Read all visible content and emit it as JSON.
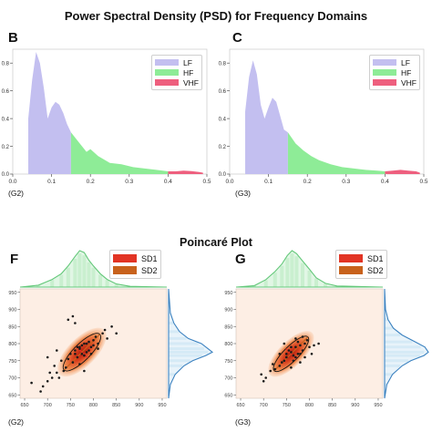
{
  "figure": {
    "title": "Power Spectral Density (PSD) for Frequency Domains",
    "poincare_title": "Poincaré Plot"
  },
  "colors": {
    "lf": "#c3bff0",
    "hf": "#8eec97",
    "vhf": "#ee5f7e",
    "sd1": "#e23424",
    "sd2": "#c8621c",
    "kde_top": "#64c87a",
    "hist_top": "#c9efcf",
    "kde_right": "#3c82c0",
    "hist_right": "#d6eaf5",
    "poincare_bg": "#fdeee4",
    "points": "#1a1a1a"
  },
  "chart_data": [
    {
      "panel": "B",
      "group": "(G2)",
      "type": "area",
      "title": "",
      "xlabel": "",
      "ylabel": "",
      "xlim": [
        0,
        0.5
      ],
      "ylim": [
        0,
        0.9
      ],
      "x_ticks": [
        "0.0",
        "0.1",
        "0.2",
        "0.3",
        "0.4",
        "0.5"
      ],
      "y_ticks": [
        "0.0",
        "0.2",
        "0.4",
        "0.6",
        "0.8"
      ],
      "legend": {
        "placement": "top-right",
        "entries": [
          "LF",
          "HF",
          "VHF"
        ]
      },
      "series": [
        {
          "name": "LF",
          "band": [
            0.04,
            0.15
          ],
          "x": [
            0.04,
            0.05,
            0.06,
            0.07,
            0.08,
            0.09,
            0.1,
            0.11,
            0.12,
            0.13,
            0.14,
            0.15
          ],
          "y": [
            0.4,
            0.68,
            0.88,
            0.8,
            0.62,
            0.4,
            0.48,
            0.52,
            0.5,
            0.44,
            0.36,
            0.3
          ]
        },
        {
          "name": "HF",
          "band": [
            0.15,
            0.4
          ],
          "x": [
            0.15,
            0.17,
            0.19,
            0.2,
            0.22,
            0.25,
            0.28,
            0.31,
            0.34,
            0.37,
            0.4
          ],
          "y": [
            0.3,
            0.23,
            0.16,
            0.18,
            0.13,
            0.08,
            0.07,
            0.05,
            0.04,
            0.03,
            0.02
          ]
        },
        {
          "name": "VHF",
          "band": [
            0.4,
            0.5
          ],
          "x": [
            0.4,
            0.42,
            0.44,
            0.46,
            0.48,
            0.49
          ],
          "y": [
            0.02,
            0.02,
            0.025,
            0.022,
            0.015,
            0.01
          ]
        }
      ]
    },
    {
      "panel": "C",
      "group": "(G3)",
      "type": "area",
      "title": "",
      "xlabel": "",
      "ylabel": "",
      "xlim": [
        0,
        0.5
      ],
      "ylim": [
        0,
        0.9
      ],
      "x_ticks": [
        "0.0",
        "0.1",
        "0.2",
        "0.3",
        "0.4",
        "0.5"
      ],
      "y_ticks": [
        "0.0",
        "0.2",
        "0.4",
        "0.6",
        "0.8"
      ],
      "legend": {
        "placement": "top-right",
        "entries": [
          "LF",
          "HF",
          "VHF"
        ]
      },
      "series": [
        {
          "name": "LF",
          "band": [
            0.04,
            0.15
          ],
          "x": [
            0.04,
            0.05,
            0.06,
            0.07,
            0.08,
            0.09,
            0.1,
            0.11,
            0.12,
            0.13,
            0.14,
            0.15
          ],
          "y": [
            0.45,
            0.7,
            0.82,
            0.72,
            0.5,
            0.4,
            0.48,
            0.55,
            0.52,
            0.42,
            0.32,
            0.3
          ]
        },
        {
          "name": "HF",
          "band": [
            0.15,
            0.4
          ],
          "x": [
            0.15,
            0.17,
            0.19,
            0.21,
            0.23,
            0.26,
            0.29,
            0.32,
            0.35,
            0.38,
            0.4
          ],
          "y": [
            0.3,
            0.22,
            0.17,
            0.13,
            0.1,
            0.07,
            0.05,
            0.04,
            0.03,
            0.025,
            0.02
          ]
        },
        {
          "name": "VHF",
          "band": [
            0.4,
            0.5
          ],
          "x": [
            0.4,
            0.42,
            0.44,
            0.46,
            0.48,
            0.49
          ],
          "y": [
            0.02,
            0.025,
            0.03,
            0.025,
            0.02,
            0.01
          ]
        }
      ]
    },
    {
      "panel": "F",
      "group": "(G2)",
      "type": "scatter",
      "title": "",
      "xlabel": "",
      "ylabel": "",
      "xlim": [
        640,
        960
      ],
      "ylim": [
        640,
        960
      ],
      "x_ticks": [
        "650",
        "700",
        "750",
        "800",
        "850",
        "900",
        "950"
      ],
      "y_ticks": [
        "650",
        "700",
        "750",
        "800",
        "850",
        "900",
        "950"
      ],
      "legend": {
        "placement": "top-right",
        "entries": [
          "SD1",
          "SD2"
        ]
      },
      "ellipse": {
        "center": [
          775,
          775
        ],
        "sd1": 18,
        "sd2": 55,
        "angle_deg": 45
      },
      "points": [
        [
          770,
          790
        ],
        [
          760,
          770
        ],
        [
          780,
          800
        ],
        [
          785,
          775
        ],
        [
          765,
          760
        ],
        [
          790,
          805
        ],
        [
          755,
          745
        ],
        [
          800,
          810
        ],
        [
          775,
          770
        ],
        [
          770,
          785
        ],
        [
          795,
          790
        ],
        [
          760,
          780
        ],
        [
          785,
          800
        ],
        [
          805,
          820
        ],
        [
          745,
          755
        ],
        [
          780,
          765
        ],
        [
          765,
          790
        ],
        [
          790,
          780
        ],
        [
          810,
          800
        ],
        [
          750,
          770
        ],
        [
          775,
          795
        ],
        [
          800,
          795
        ],
        [
          740,
          730
        ],
        [
          820,
          830
        ],
        [
          735,
          720
        ],
        [
          730,
          750
        ],
        [
          720,
          715
        ],
        [
          710,
          700
        ],
        [
          700,
          690
        ],
        [
          690,
          675
        ],
        [
          685,
          660
        ],
        [
          705,
          715
        ],
        [
          725,
          700
        ],
        [
          715,
          735
        ],
        [
          830,
          815
        ],
        [
          825,
          840
        ],
        [
          840,
          850
        ],
        [
          760,
          860
        ],
        [
          755,
          880
        ],
        [
          745,
          870
        ],
        [
          780,
          720
        ],
        [
          700,
          760
        ],
        [
          720,
          780
        ],
        [
          665,
          685
        ],
        [
          850,
          830
        ],
        [
          770,
          740
        ],
        [
          795,
          770
        ],
        [
          810,
          785
        ]
      ]
    },
    {
      "panel": "G",
      "group": "(G3)",
      "type": "scatter",
      "title": "",
      "xlabel": "",
      "ylabel": "",
      "xlim": [
        640,
        960
      ],
      "ylim": [
        640,
        960
      ],
      "x_ticks": [
        "650",
        "700",
        "750",
        "800",
        "850",
        "900",
        "950"
      ],
      "y_ticks": [
        "650",
        "700",
        "750",
        "800",
        "850",
        "900",
        "950"
      ],
      "legend": {
        "placement": "top-right",
        "entries": [
          "SD1",
          "SD2"
        ]
      },
      "ellipse": {
        "center": [
          760,
          770
        ],
        "sd1": 16,
        "sd2": 52,
        "angle_deg": 45
      },
      "points": [
        [
          760,
          775
        ],
        [
          750,
          760
        ],
        [
          770,
          790
        ],
        [
          775,
          770
        ],
        [
          745,
          750
        ],
        [
          780,
          795
        ],
        [
          765,
          765
        ],
        [
          790,
          800
        ],
        [
          755,
          780
        ],
        [
          770,
          760
        ],
        [
          785,
          780
        ],
        [
          740,
          745
        ],
        [
          795,
          810
        ],
        [
          760,
          790
        ],
        [
          750,
          770
        ],
        [
          780,
          770
        ],
        [
          800,
          790
        ],
        [
          735,
          735
        ],
        [
          775,
          805
        ],
        [
          765,
          750
        ],
        [
          725,
          725
        ],
        [
          715,
          720
        ],
        [
          705,
          700
        ],
        [
          720,
          740
        ],
        [
          810,
          795
        ],
        [
          805,
          770
        ],
        [
          790,
          760
        ],
        [
          760,
          730
        ],
        [
          780,
          745
        ],
        [
          700,
          690
        ],
        [
          695,
          710
        ],
        [
          820,
          800
        ],
        [
          745,
          800
        ],
        [
          735,
          770
        ],
        [
          770,
          815
        ],
        [
          785,
          820
        ]
      ]
    }
  ],
  "poincare_marginals": [
    {
      "panel": "F",
      "top_kde": [
        [
          640,
          0.0
        ],
        [
          680,
          0.05
        ],
        [
          710,
          0.2
        ],
        [
          730,
          0.35
        ],
        [
          745,
          0.55
        ],
        [
          760,
          0.8
        ],
        [
          770,
          0.95
        ],
        [
          780,
          0.9
        ],
        [
          790,
          0.7
        ],
        [
          800,
          0.55
        ],
        [
          815,
          0.35
        ],
        [
          830,
          0.2
        ],
        [
          850,
          0.08
        ],
        [
          880,
          0.02
        ],
        [
          960,
          0.0
        ]
      ],
      "right_kde": [
        [
          640,
          0.0
        ],
        [
          680,
          0.04
        ],
        [
          710,
          0.15
        ],
        [
          735,
          0.35
        ],
        [
          750,
          0.55
        ],
        [
          765,
          0.85
        ],
        [
          775,
          1.0
        ],
        [
          785,
          0.9
        ],
        [
          800,
          0.75
        ],
        [
          815,
          0.45
        ],
        [
          835,
          0.25
        ],
        [
          860,
          0.12
        ],
        [
          890,
          0.04
        ],
        [
          960,
          0.0
        ]
      ]
    },
    {
      "panel": "G",
      "top_kde": [
        [
          640,
          0.0
        ],
        [
          680,
          0.04
        ],
        [
          705,
          0.2
        ],
        [
          725,
          0.42
        ],
        [
          740,
          0.62
        ],
        [
          752,
          0.85
        ],
        [
          762,
          0.98
        ],
        [
          772,
          0.9
        ],
        [
          785,
          0.7
        ],
        [
          800,
          0.48
        ],
        [
          815,
          0.25
        ],
        [
          835,
          0.1
        ],
        [
          860,
          0.03
        ],
        [
          960,
          0.0
        ]
      ],
      "right_kde": [
        [
          640,
          0.0
        ],
        [
          680,
          0.05
        ],
        [
          710,
          0.18
        ],
        [
          735,
          0.4
        ],
        [
          750,
          0.6
        ],
        [
          765,
          0.9
        ],
        [
          775,
          1.0
        ],
        [
          790,
          0.92
        ],
        [
          805,
          0.7
        ],
        [
          825,
          0.4
        ],
        [
          845,
          0.2
        ],
        [
          870,
          0.08
        ],
        [
          900,
          0.02
        ],
        [
          960,
          0.0
        ]
      ]
    }
  ]
}
